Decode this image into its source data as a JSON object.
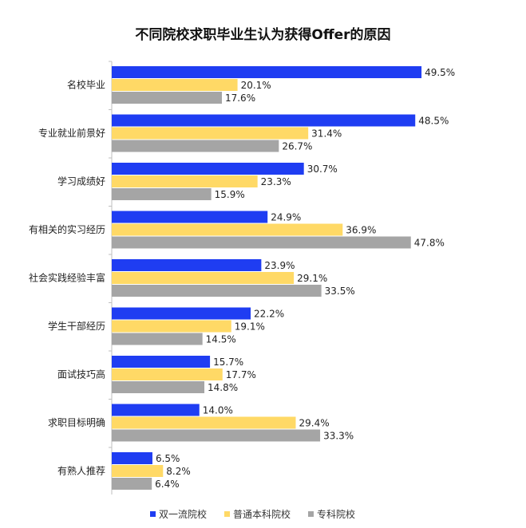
{
  "chart_data": {
    "type": "bar",
    "orientation": "horizontal",
    "title": "不同院校求职毕业生认为获得Offer的原因",
    "categories": [
      "名校毕业",
      "专业就业前景好",
      "学习成绩好",
      "有相关的实习经历",
      "社会实践经验丰富",
      "学生干部经历",
      "面试技巧高",
      "求职目标明确",
      "有熟人推荐"
    ],
    "series": [
      {
        "name": "双一流院校",
        "color": "#1f3df2",
        "values": [
          49.5,
          48.5,
          30.7,
          24.9,
          23.9,
          22.2,
          15.7,
          14.0,
          6.5
        ],
        "labels": [
          "49.5%",
          "48.5%",
          "30.7%",
          "24.9%",
          "23.9%",
          "22.2%",
          "15.7%",
          "14.0%",
          "6.5%"
        ]
      },
      {
        "name": "普通本科院校",
        "color": "#ffd966",
        "values": [
          20.1,
          31.4,
          23.3,
          36.9,
          29.1,
          19.1,
          17.7,
          29.4,
          8.2
        ],
        "labels": [
          "20.1%",
          "31.4%",
          "23.3%",
          "36.9%",
          "29.1%",
          "19.1%",
          "17.7%",
          "29.4%",
          "8.2%"
        ]
      },
      {
        "name": "专科院校",
        "color": "#a5a5a5",
        "values": [
          17.6,
          26.7,
          15.9,
          47.8,
          33.5,
          14.5,
          14.8,
          33.3,
          6.4
        ],
        "labels": [
          "17.6%",
          "26.7%",
          "15.9%",
          "47.8%",
          "33.5%",
          "14.5%",
          "14.8%",
          "33.3%",
          "6.4%"
        ]
      }
    ],
    "xlim": [
      0,
      50
    ],
    "grid": false,
    "legend": "bottom"
  }
}
